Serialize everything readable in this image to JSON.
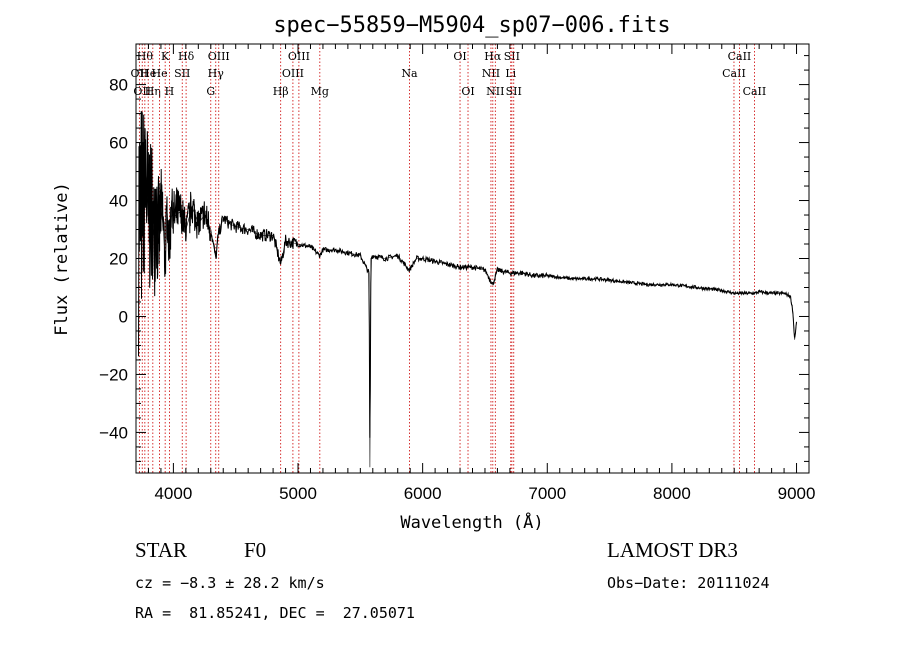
{
  "chart_data": {
    "type": "line",
    "title": "spec−55859−M5904_sp07−006.fits",
    "xlabel": "Wavelength (Å)",
    "ylabel": "Flux (relative)",
    "xlim": [
      3700,
      9100
    ],
    "ylim": [
      -54,
      94
    ],
    "xticks": [
      {
        "value": 4000,
        "label": "4000"
      },
      {
        "value": 5000,
        "label": "5000"
      },
      {
        "value": 6000,
        "label": "6000"
      },
      {
        "value": 7000,
        "label": "7000"
      },
      {
        "value": 8000,
        "label": "8000"
      },
      {
        "value": 9000,
        "label": "9000"
      }
    ],
    "yticks": [
      {
        "value": -40,
        "label": "−40"
      },
      {
        "value": -20,
        "label": "−20"
      },
      {
        "value": 0,
        "label": "0"
      },
      {
        "value": 20,
        "label": "20"
      },
      {
        "value": 40,
        "label": "40"
      },
      {
        "value": 60,
        "label": "60"
      },
      {
        "value": 80,
        "label": "80"
      }
    ],
    "series": [
      {
        "name": "spectrum",
        "x": [
          3720,
          3750,
          3780,
          3800,
          3820,
          3840,
          3860,
          3880,
          3900,
          3920,
          3935,
          3950,
          3968,
          3985,
          4000,
          4050,
          4101,
          4150,
          4200,
          4250,
          4300,
          4340,
          4360,
          4400,
          4450,
          4500,
          4600,
          4700,
          4800,
          4861,
          4900,
          5000,
          5100,
          5175,
          5200,
          5300,
          5400,
          5500,
          5570,
          5577,
          5585,
          5600,
          5700,
          5800,
          5893,
          5950,
          6000,
          6100,
          6200,
          6300,
          6400,
          6500,
          6563,
          6600,
          6700,
          6800,
          6900,
          7000,
          7200,
          7400,
          7600,
          7800,
          8000,
          8200,
          8400,
          8498,
          8542,
          8662,
          8700,
          8800,
          8900,
          8950,
          8970,
          8985,
          9000
        ],
        "y": [
          40,
          35,
          48,
          32,
          40,
          28,
          42,
          25,
          38,
          30,
          18,
          36,
          22,
          40,
          34,
          36,
          30,
          38,
          32,
          35,
          30,
          20,
          28,
          34,
          32,
          31,
          30,
          28,
          28,
          18,
          26,
          25,
          24,
          21,
          23,
          23,
          22,
          21,
          15,
          -52,
          20,
          21,
          20,
          21,
          16,
          20,
          20,
          19,
          18,
          17,
          17,
          16,
          11,
          16,
          15,
          15,
          14,
          14,
          13,
          13,
          12,
          11,
          11,
          10,
          9,
          8,
          8,
          8,
          8.5,
          8,
          8,
          7,
          2,
          -8,
          -2
        ],
        "noise_band": [
          {
            "x": 3720,
            "min": -40,
            "max": 72
          },
          {
            "x": 3760,
            "min": -30,
            "max": 70
          },
          {
            "x": 3800,
            "min": -16,
            "max": 62
          },
          {
            "x": 3840,
            "min": -6,
            "max": 56
          },
          {
            "x": 3880,
            "min": 4,
            "max": 52
          },
          {
            "x": 3920,
            "min": 12,
            "max": 50
          },
          {
            "x": 3960,
            "min": 18,
            "max": 48
          },
          {
            "x": 4000,
            "min": 24,
            "max": 46
          },
          {
            "x": 4100,
            "min": 26,
            "max": 44
          },
          {
            "x": 4200,
            "min": 27,
            "max": 42
          },
          {
            "x": 4300,
            "min": 26,
            "max": 40
          }
        ]
      }
    ],
    "spectral_lines": [
      {
        "x": 3727,
        "label": "OII",
        "row": 2
      },
      {
        "x": 3750,
        "label": "OII",
        "row": 3
      },
      {
        "x": 3771,
        "label": "Hθ",
        "row": 1
      },
      {
        "x": 3798,
        "label": "He",
        "row": 2
      },
      {
        "x": 3835,
        "label": "Hη",
        "row": 3
      },
      {
        "x": 3889,
        "label": "He",
        "row": 2
      },
      {
        "x": 3934,
        "label": "K",
        "row": 1
      },
      {
        "x": 3968,
        "label": "H",
        "row": 3
      },
      {
        "x": 4071,
        "label": "SII",
        "row": 2
      },
      {
        "x": 4102,
        "label": "Hδ",
        "row": 1
      },
      {
        "x": 4300,
        "label": "G",
        "row": 3
      },
      {
        "x": 4340,
        "label": "Hγ",
        "row": 2
      },
      {
        "x": 4364,
        "label": "OIII",
        "row": 1
      },
      {
        "x": 4861,
        "label": "Hβ",
        "row": 3
      },
      {
        "x": 4959,
        "label": "OIII",
        "row": 2
      },
      {
        "x": 5007,
        "label": "OIII",
        "row": 1
      },
      {
        "x": 5175,
        "label": "Mg",
        "row": 3
      },
      {
        "x": 5894,
        "label": "Na",
        "row": 2
      },
      {
        "x": 6300,
        "label": "OI",
        "row": 1
      },
      {
        "x": 6364,
        "label": "OI",
        "row": 3
      },
      {
        "x": 6548,
        "label": "NII",
        "row": 2
      },
      {
        "x": 6563,
        "label": "Hα",
        "row": 1
      },
      {
        "x": 6583,
        "label": "NII",
        "row": 3
      },
      {
        "x": 6707,
        "label": "Li",
        "row": 2
      },
      {
        "x": 6716,
        "label": "SII",
        "row": 1
      },
      {
        "x": 6731,
        "label": "SII",
        "row": 3
      },
      {
        "x": 8498,
        "label": "CaII",
        "row": 2
      },
      {
        "x": 8542,
        "label": "CaII",
        "row": 1
      },
      {
        "x": 8662,
        "label": "CaII",
        "row": 3
      }
    ],
    "line_color": "#cc0000",
    "spectrum_color": "#000000"
  },
  "info": {
    "class_label": "STAR",
    "subclass": "F0",
    "survey": "LAMOST DR3",
    "cz": "cz = −8.3 ± 28.2 km/s",
    "obs_date": "Obs−Date: 20111024",
    "coords": "RA =  81.85241, DEC =  27.05071"
  }
}
